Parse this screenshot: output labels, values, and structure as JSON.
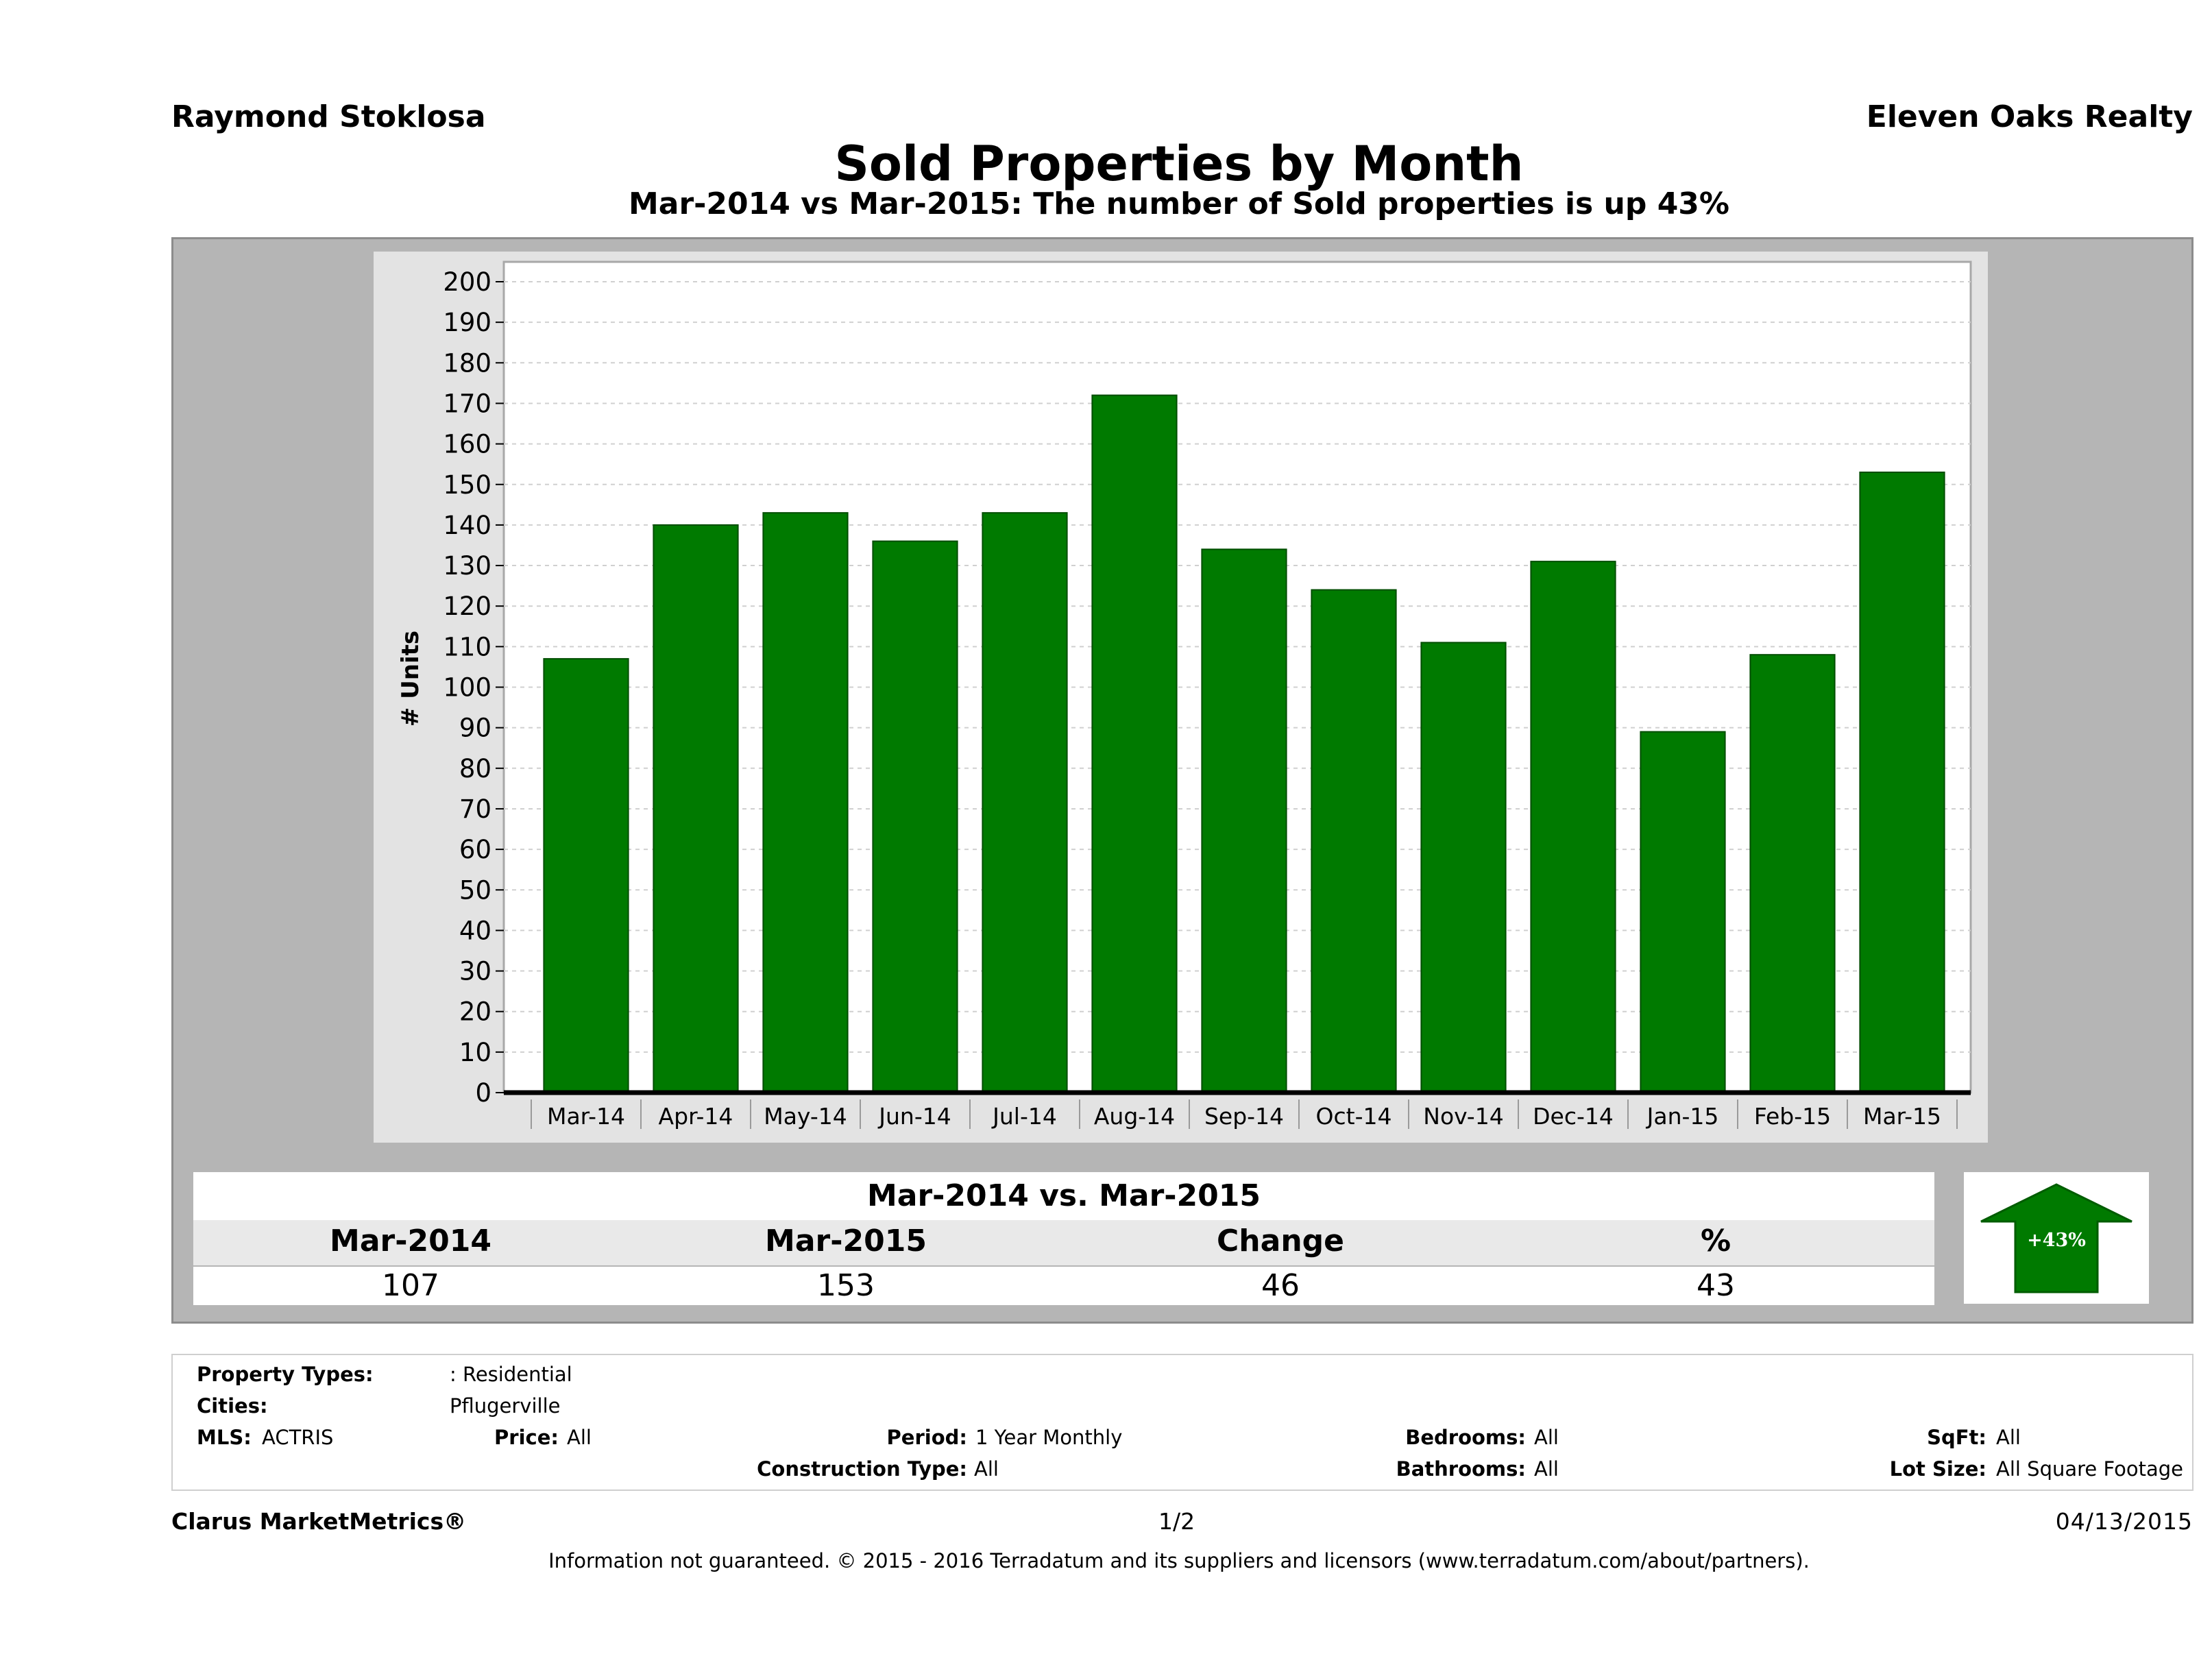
{
  "header": {
    "agent": "Raymond Stoklosa",
    "company": "Eleven Oaks Realty"
  },
  "chart_data": {
    "type": "bar",
    "title": "Sold Properties by Month",
    "subtitle": "Mar-2014 vs Mar-2015: The number of Sold  properties is up 43%",
    "ylabel": "# Units",
    "xlabel": "",
    "ylim": [
      0,
      200
    ],
    "yticks": [
      0,
      10,
      20,
      30,
      40,
      50,
      60,
      70,
      80,
      90,
      100,
      110,
      120,
      130,
      140,
      150,
      160,
      170,
      180,
      190,
      200
    ],
    "categories": [
      "Mar-14",
      "Apr-14",
      "May-14",
      "Jun-14",
      "Jul-14",
      "Aug-14",
      "Sep-14",
      "Oct-14",
      "Nov-14",
      "Dec-14",
      "Jan-15",
      "Feb-15",
      "Mar-15"
    ],
    "values": [
      107,
      140,
      143,
      136,
      143,
      172,
      134,
      124,
      111,
      131,
      89,
      108,
      153
    ],
    "bar_color": "#007a00",
    "grid": true,
    "legend": "none"
  },
  "comparison": {
    "title": "Mar-2014 vs. Mar-2015",
    "headers": [
      "Mar-2014",
      "Mar-2015",
      "Change",
      "%"
    ],
    "values": [
      "107",
      "153",
      "46",
      "43"
    ],
    "badge": "+43%",
    "badge_color": "#007a00"
  },
  "filters": {
    "property_types_label": "Property Types:",
    "property_types_value": ": Residential",
    "cities_label": "Cities:",
    "cities_value": "Pflugerville",
    "mls_label": "MLS:",
    "mls_value": "ACTRIS",
    "price_label": "Price:",
    "price_value": "All",
    "period_label": "Period:",
    "period_value": "1 Year Monthly",
    "construction_label": "Construction Type:",
    "construction_value": "All",
    "bedrooms_label": "Bedrooms:",
    "bedrooms_value": "All",
    "bathrooms_label": "Bathrooms:",
    "bathrooms_value": "All",
    "sqft_label": "SqFt:",
    "sqft_value": "All",
    "lotsize_label": "Lot Size:",
    "lotsize_value": "All Square Footage"
  },
  "footer": {
    "brand": "Clarus MarketMetrics®",
    "page": "1/2",
    "date": "04/13/2015",
    "disclaimer": "Information not guaranteed. © 2015 - 2016 Terradatum and its suppliers and licensors (www.terradatum.com/about/partners)."
  }
}
